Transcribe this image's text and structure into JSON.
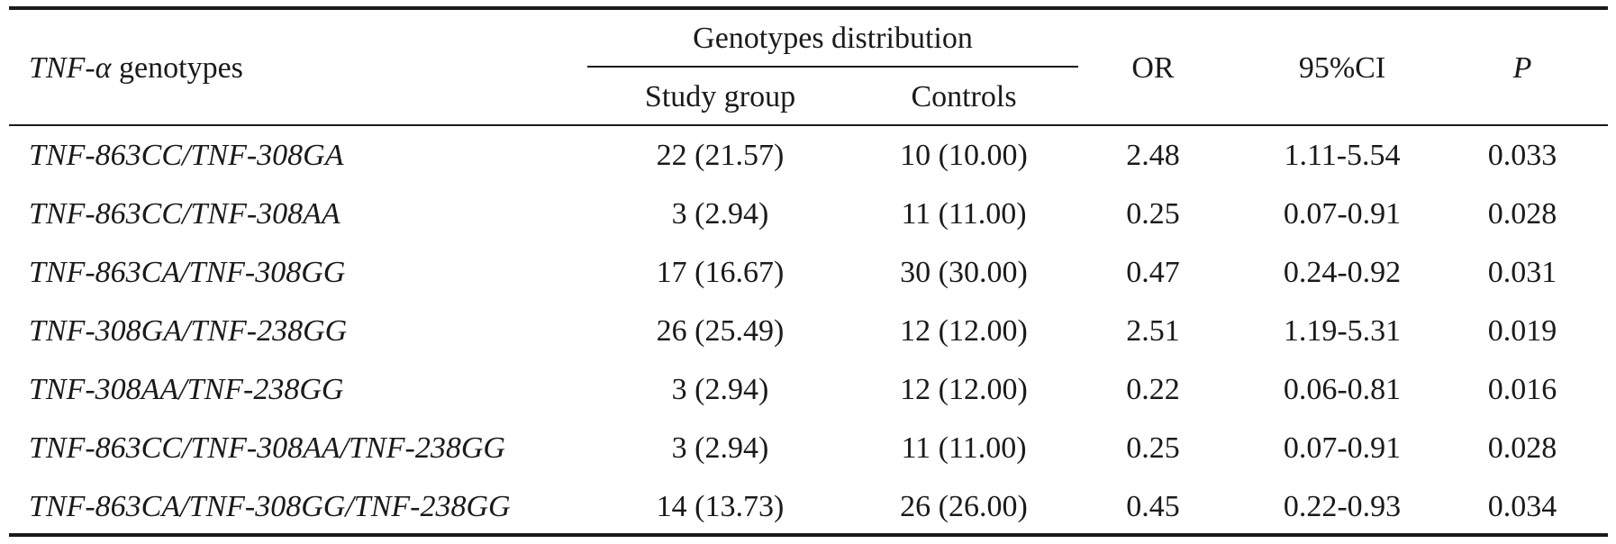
{
  "table": {
    "header": {
      "genotype_label_italic": "TNF-α",
      "genotype_label_rest": " genotypes",
      "group_label": "Genotypes distribution",
      "study_label": "Study group",
      "controls_label": "Controls",
      "or_label": "OR",
      "ci_label": "95%CI",
      "p_label": "P"
    },
    "rows": [
      {
        "genotype": "TNF-863CC/TNF-308GA",
        "study": "22 (21.57)",
        "controls": "10 (10.00)",
        "or": "2.48",
        "ci": "1.11-5.54",
        "p": "0.033"
      },
      {
        "genotype": "TNF-863CC/TNF-308AA",
        "study": "3 (2.94)",
        "controls": "11 (11.00)",
        "or": "0.25",
        "ci": "0.07-0.91",
        "p": "0.028"
      },
      {
        "genotype": "TNF-863CA/TNF-308GG",
        "study": "17 (16.67)",
        "controls": "30 (30.00)",
        "or": "0.47",
        "ci": "0.24-0.92",
        "p": "0.031"
      },
      {
        "genotype": "TNF-308GA/TNF-238GG",
        "study": "26 (25.49)",
        "controls": "12 (12.00)",
        "or": "2.51",
        "ci": "1.19-5.31",
        "p": "0.019"
      },
      {
        "genotype": "TNF-308AA/TNF-238GG",
        "study": "3 (2.94)",
        "controls": "12 (12.00)",
        "or": "0.22",
        "ci": "0.06-0.81",
        "p": "0.016"
      },
      {
        "genotype": "TNF-863CC/TNF-308AA/TNF-238GG",
        "study": "3 (2.94)",
        "controls": "11 (11.00)",
        "or": "0.25",
        "ci": "0.07-0.91",
        "p": "0.028"
      },
      {
        "genotype": "TNF-863CA/TNF-308GG/TNF-238GG",
        "study": "14 (13.73)",
        "controls": "26 (26.00)",
        "or": "0.45",
        "ci": "0.22-0.93",
        "p": "0.034"
      }
    ]
  }
}
